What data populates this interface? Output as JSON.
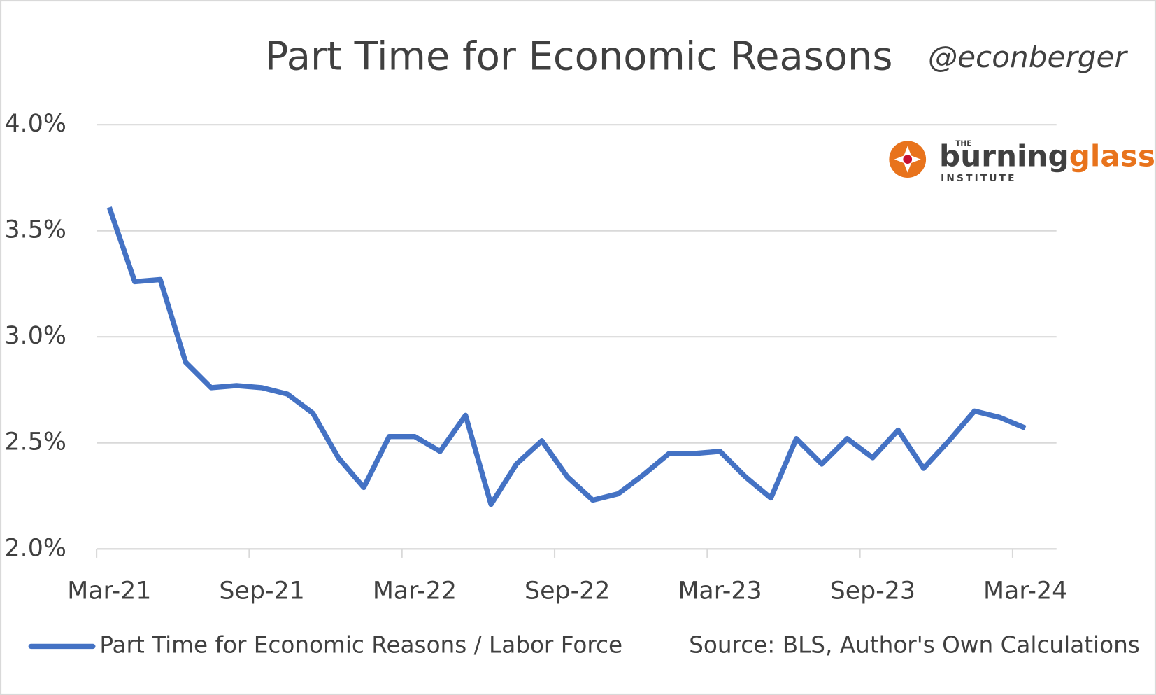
{
  "chart_data": {
    "type": "line",
    "title": "Part Time for Economic Reasons",
    "handle": "@econberger",
    "source": "Source: BLS, Author's Own Calculations",
    "logo": {
      "top": "THE",
      "word_1": "burning",
      "word_2": "glass",
      "bottom": "INSTITUTE"
    },
    "categories": [
      "Mar-21",
      null,
      null,
      null,
      null,
      null,
      "Sep-21",
      null,
      null,
      null,
      null,
      null,
      "Mar-22",
      null,
      null,
      null,
      null,
      null,
      "Sep-22",
      null,
      null,
      null,
      null,
      null,
      "Mar-23",
      null,
      null,
      null,
      null,
      null,
      "Sep-23",
      null,
      null,
      null,
      null,
      null,
      "Mar-24"
    ],
    "series": [
      {
        "name": "Part Time for Economic Reasons / Labor Force",
        "color": "#4472c4",
        "values": [
          3.61,
          3.26,
          3.27,
          2.88,
          2.76,
          2.77,
          2.76,
          2.73,
          2.64,
          2.43,
          2.29,
          2.53,
          2.53,
          2.46,
          2.63,
          2.21,
          2.4,
          2.51,
          2.34,
          2.23,
          2.26,
          2.35,
          2.45,
          2.45,
          2.46,
          2.34,
          2.24,
          2.52,
          2.4,
          2.52,
          2.43,
          2.56,
          2.38,
          2.51,
          2.65,
          2.62,
          2.57
        ]
      }
    ],
    "ylim": [
      2.0,
      4.0
    ],
    "yticks": [
      {
        "value": 2.0,
        "label": "2.0%"
      },
      {
        "value": 2.5,
        "label": "2.5%"
      },
      {
        "value": 3.0,
        "label": "3.0%"
      },
      {
        "value": 3.5,
        "label": "3.5%"
      },
      {
        "value": 4.0,
        "label": "4.0%"
      }
    ],
    "grid": true,
    "legend": "bottom-left"
  }
}
